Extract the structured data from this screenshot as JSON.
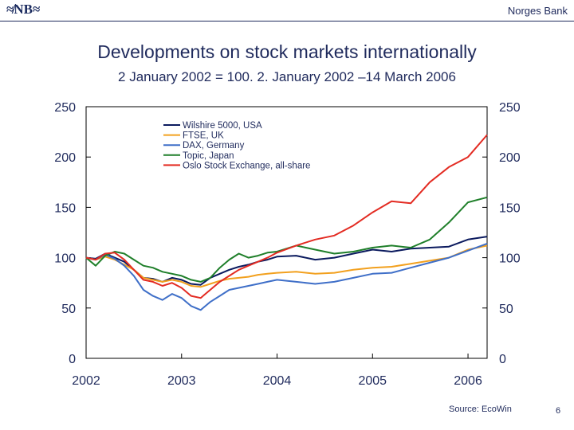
{
  "header": {
    "logo_text": "≉NB≈",
    "bank_name": "Norges Bank"
  },
  "footer": {
    "source": "Source: EcoWin",
    "page_number": "6"
  },
  "chart_data": {
    "type": "line",
    "title": "Developments on stock markets internationally",
    "subtitle": "2 January 2002 = 100.  2. January 2002 –14 March 2006",
    "xlabel": "",
    "ylabel": "",
    "x_ticks": [
      "2002",
      "2003",
      "2004",
      "2005",
      "2006"
    ],
    "y_ticks": [
      0,
      50,
      100,
      150,
      200,
      250
    ],
    "ylim": [
      0,
      250
    ],
    "xlim": [
      2002.0,
      2006.2
    ],
    "grid": false,
    "legend_position": "top-left",
    "series": [
      {
        "name": "Wilshire 5000, USA",
        "color": "#0b1a5e",
        "x": [
          2002.0,
          2002.1,
          2002.2,
          2002.3,
          2002.4,
          2002.5,
          2002.6,
          2002.7,
          2002.8,
          2002.9,
          2003.0,
          2003.1,
          2003.2,
          2003.3,
          2003.4,
          2003.5,
          2003.6,
          2003.7,
          2003.8,
          2003.9,
          2004.0,
          2004.2,
          2004.4,
          2004.6,
          2004.8,
          2005.0,
          2005.2,
          2005.4,
          2005.6,
          2005.8,
          2006.0,
          2006.2
        ],
        "values": [
          100,
          99,
          104,
          100,
          96,
          88,
          80,
          79,
          76,
          80,
          78,
          74,
          73,
          80,
          84,
          88,
          91,
          93,
          96,
          98,
          101,
          102,
          98,
          100,
          104,
          108,
          106,
          109,
          110,
          111,
          118,
          121
        ]
      },
      {
        "name": "FTSE, UK",
        "color": "#f2a01e",
        "x": [
          2002.0,
          2002.1,
          2002.2,
          2002.3,
          2002.4,
          2002.5,
          2002.6,
          2002.7,
          2002.8,
          2002.9,
          2003.0,
          2003.1,
          2003.2,
          2003.3,
          2003.4,
          2003.5,
          2003.6,
          2003.7,
          2003.8,
          2003.9,
          2004.0,
          2004.2,
          2004.4,
          2004.6,
          2004.8,
          2005.0,
          2005.2,
          2005.4,
          2005.6,
          2005.8,
          2006.0,
          2006.2
        ],
        "values": [
          100,
          98,
          101,
          98,
          93,
          88,
          80,
          78,
          76,
          78,
          76,
          72,
          71,
          74,
          77,
          79,
          80,
          81,
          83,
          84,
          85,
          86,
          84,
          85,
          88,
          90,
          91,
          94,
          97,
          100,
          108,
          112
        ]
      },
      {
        "name": "DAX, Germany",
        "color": "#3f6fc8",
        "x": [
          2002.0,
          2002.1,
          2002.2,
          2002.3,
          2002.4,
          2002.5,
          2002.6,
          2002.7,
          2002.8,
          2002.9,
          2003.0,
          2003.1,
          2003.2,
          2003.3,
          2003.4,
          2003.5,
          2003.6,
          2003.7,
          2003.8,
          2003.9,
          2004.0,
          2004.2,
          2004.4,
          2004.6,
          2004.8,
          2005.0,
          2005.2,
          2005.4,
          2005.6,
          2005.8,
          2006.0,
          2006.2
        ],
        "values": [
          100,
          98,
          103,
          99,
          92,
          82,
          68,
          62,
          58,
          64,
          60,
          52,
          48,
          56,
          62,
          68,
          70,
          72,
          74,
          76,
          78,
          76,
          74,
          76,
          80,
          84,
          85,
          90,
          95,
          100,
          107,
          114
        ]
      },
      {
        "name": "Topic, Japan",
        "color": "#1f7f2a",
        "x": [
          2002.0,
          2002.1,
          2002.2,
          2002.3,
          2002.4,
          2002.5,
          2002.6,
          2002.7,
          2002.8,
          2002.9,
          2003.0,
          2003.1,
          2003.2,
          2003.3,
          2003.4,
          2003.5,
          2003.6,
          2003.7,
          2003.8,
          2003.9,
          2004.0,
          2004.2,
          2004.4,
          2004.6,
          2004.8,
          2005.0,
          2005.2,
          2005.4,
          2005.6,
          2005.8,
          2006.0,
          2006.2
        ],
        "values": [
          100,
          92,
          102,
          106,
          104,
          98,
          92,
          90,
          86,
          84,
          82,
          78,
          76,
          80,
          90,
          98,
          104,
          100,
          102,
          105,
          106,
          112,
          108,
          104,
          106,
          110,
          112,
          110,
          118,
          135,
          155,
          160
        ]
      },
      {
        "name": "Oslo Stock Exchange, all-share",
        "color": "#e32b22",
        "x": [
          2002.0,
          2002.1,
          2002.2,
          2002.3,
          2002.4,
          2002.5,
          2002.6,
          2002.7,
          2002.8,
          2002.9,
          2003.0,
          2003.1,
          2003.2,
          2003.3,
          2003.4,
          2003.5,
          2003.6,
          2003.7,
          2003.8,
          2003.9,
          2004.0,
          2004.2,
          2004.4,
          2004.6,
          2004.8,
          2005.0,
          2005.2,
          2005.4,
          2005.6,
          2005.8,
          2006.0,
          2006.2
        ],
        "values": [
          100,
          98,
          104,
          105,
          98,
          88,
          78,
          76,
          72,
          75,
          70,
          62,
          60,
          68,
          76,
          82,
          88,
          92,
          96,
          100,
          105,
          112,
          118,
          122,
          132,
          145,
          156,
          154,
          175,
          190,
          200,
          222
        ]
      }
    ]
  }
}
